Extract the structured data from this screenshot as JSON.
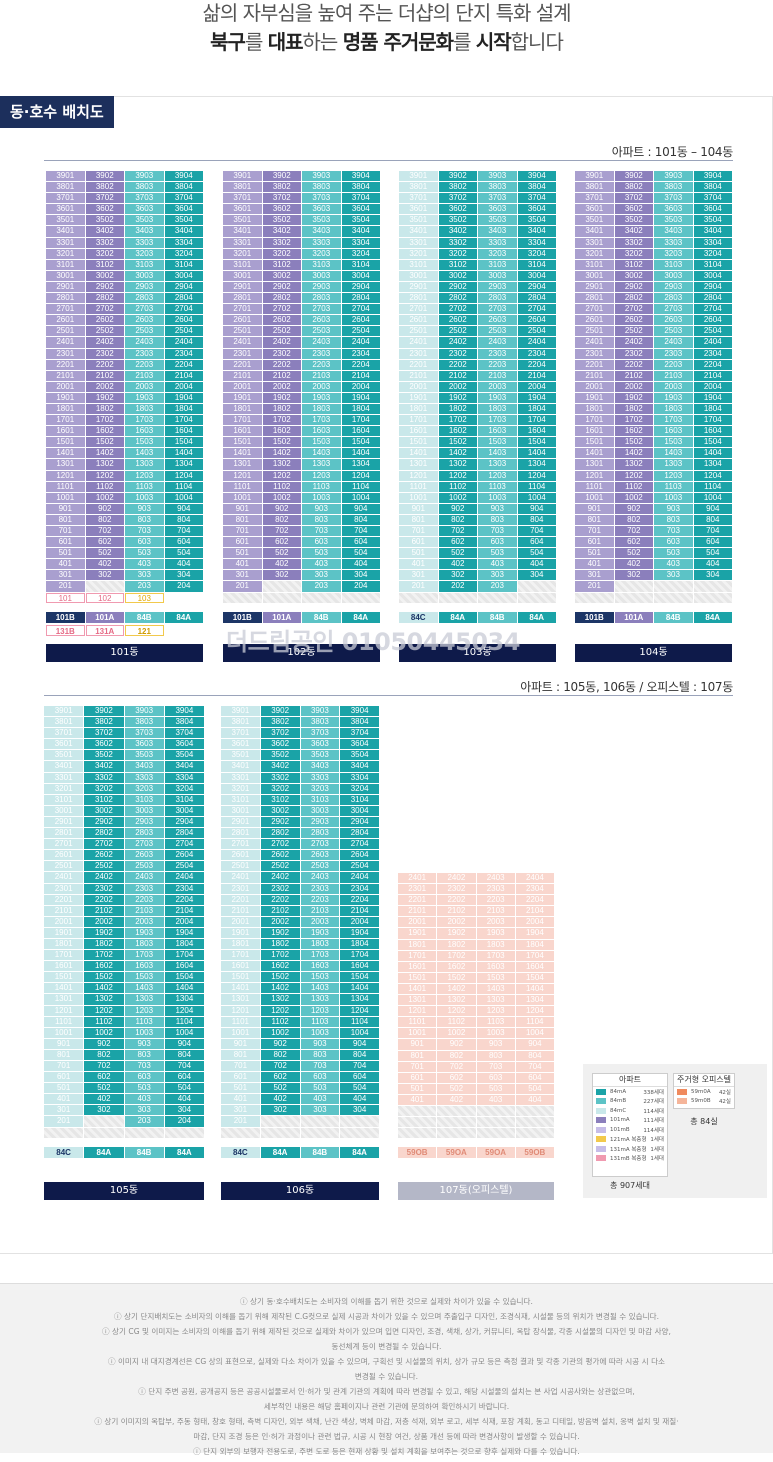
{
  "header": {
    "line1": "삶의 자부심을 높여 주는 더샵의 단지 특화 설계",
    "line2_parts": [
      "북구",
      "를 ",
      "대표",
      "하는 ",
      "명품 주거문화",
      "를 ",
      "시작",
      "합니다"
    ]
  },
  "tag": "동·호수 배치도",
  "sections": {
    "top": "아파트 : 101동 – 104동",
    "bottom": "아파트 : 105동, 106동  /  오피스텔 : 107동"
  },
  "watermark": "더드림공인 01050445034",
  "buildings": [
    {
      "name": "101동",
      "types": [
        "101B",
        "101A",
        "84B",
        "84A"
      ],
      "types2": [
        "131B",
        "131A",
        "121",
        ""
      ],
      "low": [
        [
          "201",
          "",
          "203",
          "204"
        ],
        [
          "101",
          "102",
          "103",
          ""
        ]
      ]
    },
    {
      "name": "102동",
      "types": [
        "101B",
        "101A",
        "84B",
        "84A"
      ],
      "low": [
        [
          "201",
          "",
          "203",
          "204"
        ]
      ]
    },
    {
      "name": "103동",
      "types": [
        "84C",
        "84A",
        "84B",
        "84A"
      ],
      "low": [
        [
          "201",
          "202",
          "203",
          ""
        ]
      ]
    },
    {
      "name": "104동",
      "types": [
        "101B",
        "101A",
        "84B",
        "84A"
      ],
      "low": [
        [
          "201",
          "",
          "",
          ""
        ]
      ]
    },
    {
      "name": "105동",
      "types": [
        "84C",
        "84A",
        "84B",
        "84A"
      ],
      "low": [
        [
          "201",
          "",
          "203",
          "204"
        ]
      ]
    },
    {
      "name": "106동",
      "types": [
        "84C",
        "84A",
        "84B",
        "84A"
      ],
      "low": [
        [
          "201",
          "",
          "",
          ""
        ]
      ]
    },
    {
      "name": "107동(오피스텔)",
      "types": [
        "59OB",
        "59OA",
        "59OA",
        "59OB"
      ]
    }
  ],
  "legend": {
    "apt_title": "아파트",
    "apt_rows": [
      {
        "label": "84mA",
        "count": "338세대",
        "color": "#1aa3a7"
      },
      {
        "label": "84mB",
        "count": "227세대",
        "color": "#5cc3c6"
      },
      {
        "label": "84mC",
        "count": "114세대",
        "color": "#c9e8ea"
      },
      {
        "label": "101mA",
        "count": "111세대",
        "color": "#8b7fbc"
      },
      {
        "label": "101mB",
        "count": "114세대",
        "color": "#c6bde8"
      },
      {
        "label": "121mA  복층형",
        "count": "1세대",
        "color": "#f2c94c"
      },
      {
        "label": "131mA  복층형",
        "count": "1세대",
        "color": "#c6bde8"
      },
      {
        "label": "131mB  복층형",
        "count": "1세대",
        "color": "#f09ab0"
      }
    ],
    "apt_total": "총 907세대",
    "off_title": "주거형 오피스텔",
    "off_rows": [
      {
        "label": "59m0A",
        "count": "42실",
        "color": "#f08a5d"
      },
      {
        "label": "59m0B",
        "count": "42실",
        "color": "#f5b59a"
      }
    ],
    "off_total": "총 84실"
  },
  "notes": [
    "ⓘ 상기 동·호수배치도는 소비자의 이해를 돕기 위한 것으로 실제와 차이가 있을 수 있습니다.",
    "ⓘ 상기 단지배치도는 소비자의 이해를 돕기 위해 제작된 C.G컷으로 실제 시공과 차이가 있을 수 있으며 주출입구 디자인, 조경식재, 시설물 등의 위치가 변경될 수 있습니다.",
    "ⓘ 상기 CG 및 이미지는 소비자의 이해를 돕기 위해 제작된 것으로 실제와 차이가 있으며 입면 디자인, 조경, 색채, 상가, 커뮤니티, 옥탑 장식물, 각종 시설물의 디자인 및 마감 사양,",
    "동선체계 등이 변경될 수 있습니다.",
    "ⓘ 이미지 내 대지경계선은 CG 상의 표현으로, 실제와 다소 차이가 있을 수 있으며, 구획선 및 시설물의 위치, 상가 규모 등은 측정 결과 및 각종 기관의 평가에 따라 시공 시 다소",
    "변경될 수 있습니다.",
    "ⓘ 단지 주변 공원, 공개공지 등은 공공시설물로서 인·허가 및 관계 기관의 계획에 따라 변경될 수 있고, 해당 시설물의 설치는 본 사업 시공사와는 상관없으며,",
    "세부적인 내용은 해당 홈페이지나 관련 기관에 문의하여 확인하시기 바랍니다.",
    "ⓘ 상기 이미지의 옥탑부, 주동 형태, 창호 형태, 측벽 디자인, 외부 색채, 난간 색상, 벽체 마감, 저층 석재, 외부 로고, 세부 식재, 포장 계획, 동고 디테일, 방음벽 설치, 옹벽 설치 및 재질·",
    "마감, 단지 조경 등은 인·허가 과정이나 관련 법규, 시공 시 현장 여건, 상품 개선 등에 따라 변경사항이 발생할 수 있습니다.",
    "ⓘ 단지 외부의 보행자 전용도로, 주변 도로 등은 현재 상황 및 설치 계획을 보여주는 것으로 향후 실제와 다를 수 있습니다."
  ]
}
